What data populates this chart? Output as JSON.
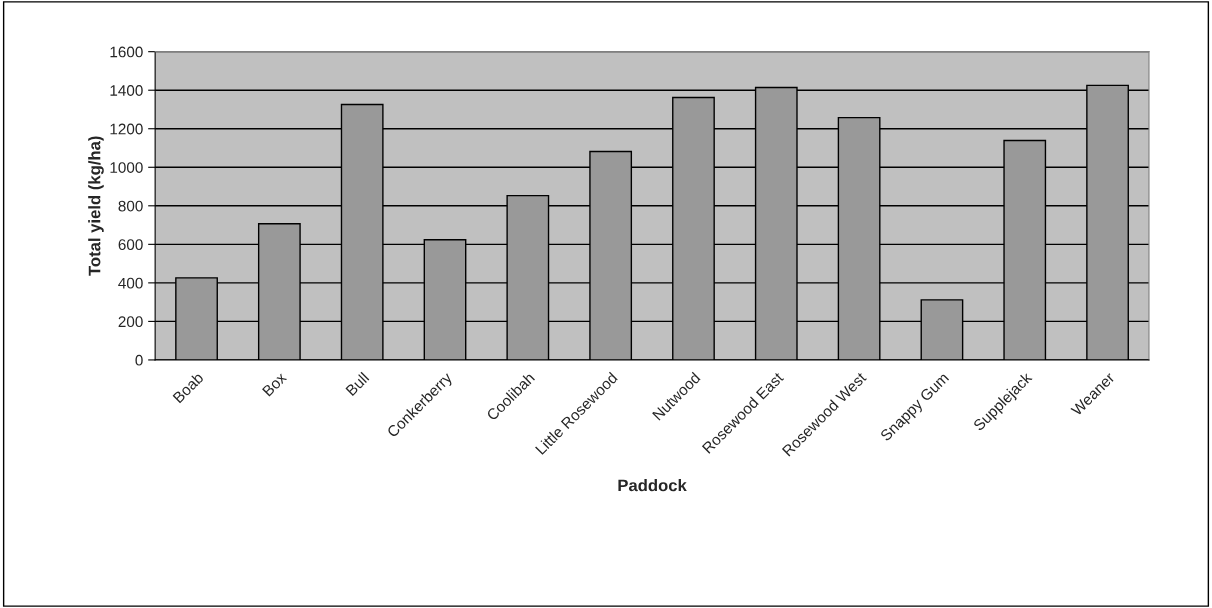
{
  "chart_data": {
    "type": "bar",
    "xlabel": "Paddock",
    "ylabel": "Total yield (kg/ha)",
    "categories": [
      "Boab",
      "Box",
      "Bull",
      "Conkerberry",
      "Coolibah",
      "Little Rosewood",
      "Nutwood",
      "Rosewood East",
      "Rosewood West",
      "Snappy Gum",
      "Supplejack",
      "Weaner"
    ],
    "values": [
      426,
      707,
      1326,
      624,
      853,
      1082,
      1362,
      1414,
      1258,
      312,
      1139,
      1425
    ],
    "color": "#999999",
    "ylim": [
      0,
      1600
    ],
    "yticks": [
      0,
      200,
      400,
      600,
      800,
      1000,
      1200,
      1400,
      1600
    ],
    "grid": "y"
  }
}
